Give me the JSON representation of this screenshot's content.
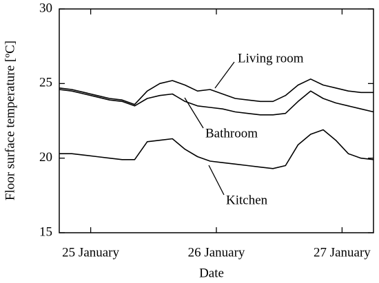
{
  "chart_data": {
    "type": "line",
    "x_label": "Date",
    "y_label": "Floor surface temperature [ºC]",
    "x": [
      24.75,
      24.85,
      24.95,
      25.05,
      25.15,
      25.25,
      25.35,
      25.45,
      25.55,
      25.65,
      25.75,
      25.85,
      25.95,
      26.05,
      26.15,
      26.25,
      26.35,
      26.45,
      26.55,
      26.65,
      26.75,
      26.85,
      26.95,
      27.05,
      27.15,
      27.25
    ],
    "series": [
      {
        "name": "Living room",
        "color": "#000000",
        "values": [
          24.7,
          24.6,
          24.4,
          24.2,
          24.0,
          23.9,
          23.6,
          24.5,
          25.0,
          25.2,
          24.9,
          24.5,
          24.6,
          24.3,
          24.0,
          23.9,
          23.8,
          23.8,
          24.2,
          24.9,
          25.3,
          24.9,
          24.7,
          24.5,
          24.4,
          24.4
        ]
      },
      {
        "name": "Bathroom",
        "color": "#000000",
        "values": [
          24.6,
          24.5,
          24.3,
          24.1,
          23.9,
          23.8,
          23.5,
          24.0,
          24.2,
          24.3,
          23.8,
          23.5,
          23.4,
          23.3,
          23.1,
          23.0,
          22.9,
          22.9,
          23.0,
          23.8,
          24.5,
          24.0,
          23.7,
          23.5,
          23.3,
          23.1
        ]
      },
      {
        "name": "Kitchen",
        "color": "#000000",
        "values": [
          20.3,
          20.3,
          20.2,
          20.1,
          20.0,
          19.9,
          19.9,
          21.1,
          21.2,
          21.3,
          20.6,
          20.1,
          19.8,
          19.7,
          19.6,
          19.5,
          19.4,
          19.3,
          19.5,
          20.9,
          21.6,
          21.9,
          21.2,
          20.3,
          20.0,
          19.9
        ]
      }
    ],
    "xlim": [
      24.75,
      27.25
    ],
    "xticks": [
      {
        "value": 25,
        "label": "25 January"
      },
      {
        "value": 26,
        "label": "26 January"
      },
      {
        "value": 27,
        "label": "27 January"
      }
    ],
    "ylim": [
      15,
      30
    ],
    "yticks": [
      15,
      20,
      25,
      30
    ],
    "grid": false
  }
}
